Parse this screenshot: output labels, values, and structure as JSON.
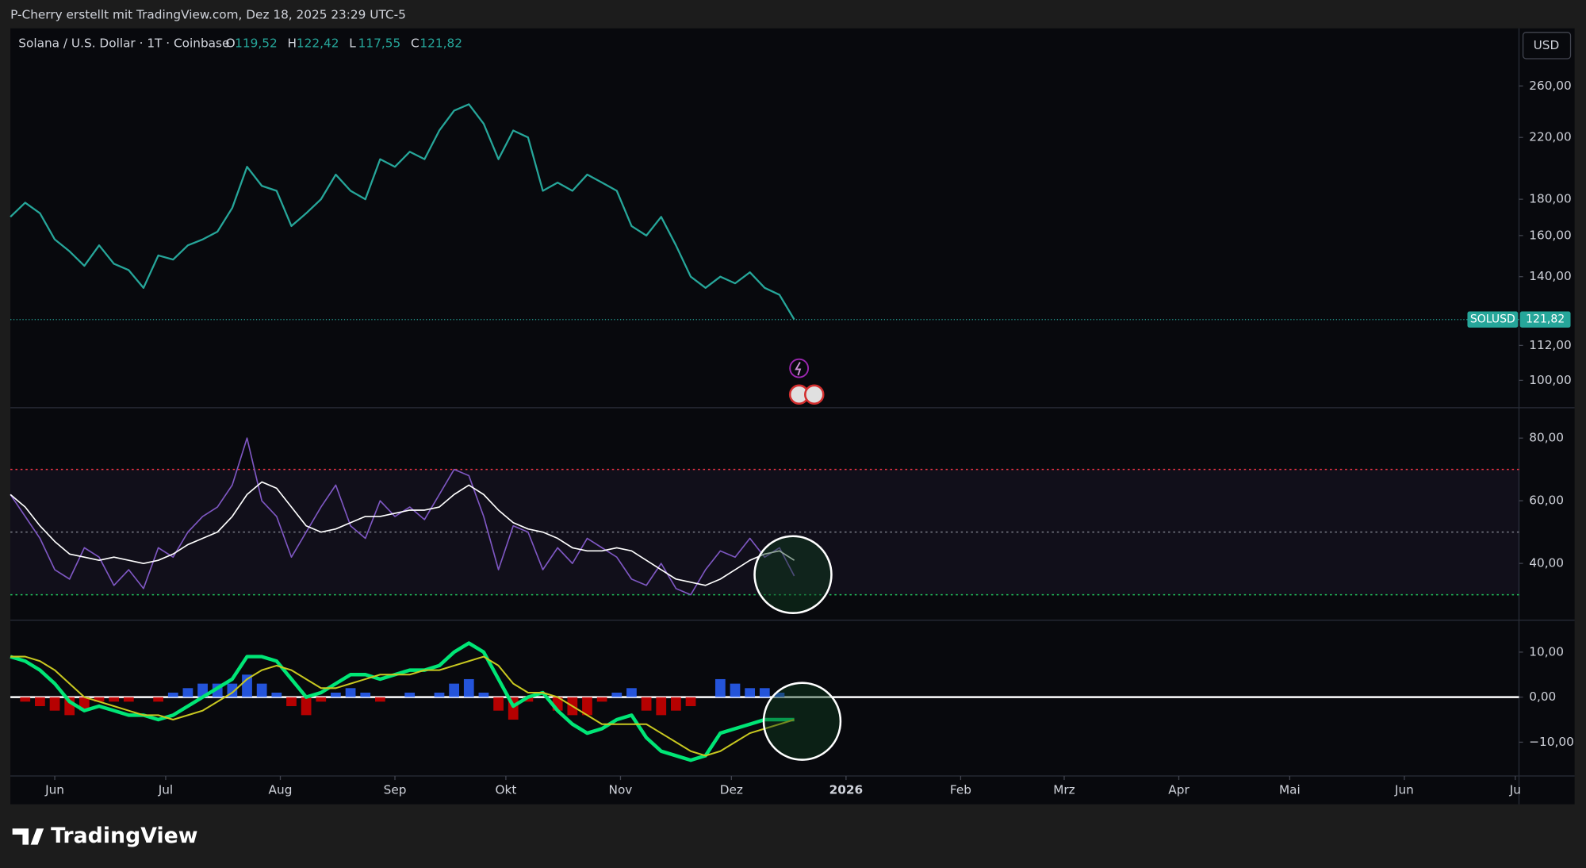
{
  "header": "P-Cherry erstellt mit TradingView.com, Dez 18, 2025 23:29 UTC-5",
  "brand": "TradingView",
  "chart_data": [
    {
      "type": "line",
      "title": "Solana / U.S. Dollar · 1T · Coinbase",
      "legend": [
        {
          "name": "O",
          "label": "119,52"
        },
        {
          "name": "H",
          "label": "122,42"
        },
        {
          "name": "L",
          "label": "117,55"
        },
        {
          "name": "C",
          "label": "121,82"
        }
      ],
      "currency": "USD",
      "symbol": "SOLUSD",
      "last_price": {
        "value": 121.82,
        "label": "121,82"
      },
      "log_scale": true,
      "xlim": [
        0,
        408
      ],
      "x": [
        0,
        4,
        8,
        12,
        16,
        20,
        24,
        28,
        32,
        36,
        40,
        44,
        48,
        52,
        56,
        60,
        64,
        68,
        72,
        76,
        80,
        84,
        88,
        92,
        96,
        100,
        104,
        108,
        112,
        116,
        120,
        124,
        128,
        132,
        136,
        140,
        144,
        148,
        152,
        156,
        160,
        164,
        168,
        172,
        176,
        180,
        184,
        188,
        192,
        196,
        200,
        204,
        208,
        212
      ],
      "series": [
        {
          "color": "#26a69a",
          "values": [
            170,
            178,
            172,
            158,
            152,
            145,
            155,
            146,
            143,
            135,
            150,
            148,
            155,
            158,
            162,
            175,
            200,
            188,
            185,
            165,
            172,
            180,
            195,
            185,
            180,
            205,
            200,
            210,
            205,
            225,
            240,
            245,
            230,
            205,
            225,
            220,
            185,
            190,
            185,
            195,
            190,
            185,
            165,
            160,
            170,
            155,
            140,
            135,
            140,
            137,
            142,
            135,
            132,
            121.82
          ]
        }
      ],
      "ylim": [
        91.5,
        313.5
      ],
      "yticks": [
        {
          "value": 260,
          "label": "260,00"
        },
        {
          "value": 220,
          "label": "220,00"
        },
        {
          "value": 180,
          "label": "180,00"
        },
        {
          "value": 160,
          "label": "160,00"
        },
        {
          "value": 140,
          "label": "140,00"
        },
        {
          "value": 112,
          "label": "112,00"
        },
        {
          "value": 100,
          "label": "100,00"
        }
      ]
    },
    {
      "type": "line",
      "xlim": [
        0,
        408
      ],
      "x": [
        0,
        4,
        8,
        12,
        16,
        20,
        24,
        28,
        32,
        36,
        40,
        44,
        48,
        52,
        56,
        60,
        64,
        68,
        72,
        76,
        80,
        84,
        88,
        92,
        96,
        100,
        104,
        108,
        112,
        116,
        120,
        124,
        128,
        132,
        136,
        140,
        144,
        148,
        152,
        156,
        160,
        164,
        168,
        172,
        176,
        180,
        184,
        188,
        192,
        196,
        200,
        204,
        208,
        212
      ],
      "series": [
        {
          "color": "#7e57c2",
          "values": [
            62,
            55,
            48,
            38,
            35,
            45,
            42,
            33,
            38,
            32,
            45,
            42,
            50,
            55,
            58,
            65,
            80,
            60,
            55,
            42,
            50,
            58,
            65,
            52,
            48,
            60,
            55,
            58,
            54,
            62,
            70,
            68,
            55,
            38,
            52,
            50,
            38,
            45,
            40,
            48,
            45,
            42,
            35,
            33,
            40,
            32,
            30,
            38,
            44,
            42,
            48,
            42,
            45,
            36
          ]
        },
        {
          "color": "#ffffff",
          "values": [
            62,
            58,
            52,
            47,
            43,
            42,
            41,
            42,
            41,
            40,
            41,
            43,
            46,
            48,
            50,
            55,
            62,
            66,
            64,
            58,
            52,
            50,
            51,
            53,
            55,
            55,
            56,
            57,
            57,
            58,
            62,
            65,
            62,
            57,
            53,
            51,
            50,
            48,
            45,
            44,
            44,
            45,
            44,
            41,
            38,
            35,
            34,
            33,
            35,
            38,
            41,
            43,
            44,
            41
          ]
        }
      ],
      "levels": [
        {
          "value": 70,
          "color": "#f23645"
        },
        {
          "value": 50,
          "color": "#787b86"
        },
        {
          "value": 30,
          "color": "#22c55e"
        }
      ],
      "band_color": "#7e57c2",
      "ylim": [
        21.9,
        89.7
      ],
      "yticks": [
        {
          "value": 80,
          "label": "80,00"
        },
        {
          "value": 60,
          "label": "60,00"
        },
        {
          "value": 40,
          "label": "40,00"
        }
      ]
    },
    {
      "type": "macd",
      "xlim": [
        0,
        408
      ],
      "x": [
        0,
        4,
        8,
        12,
        16,
        20,
        24,
        28,
        32,
        36,
        40,
        44,
        48,
        52,
        56,
        60,
        64,
        68,
        72,
        76,
        80,
        84,
        88,
        92,
        96,
        100,
        104,
        108,
        112,
        116,
        120,
        124,
        128,
        132,
        136,
        140,
        144,
        148,
        152,
        156,
        160,
        164,
        168,
        172,
        176,
        180,
        184,
        188,
        192,
        196,
        200,
        204,
        208,
        212
      ],
      "histogram": {
        "colors": [
          "#2962ff",
          "#d50000"
        ],
        "values": [
          0,
          -1,
          -2,
          -3,
          -4,
          -3,
          -1,
          -1,
          -1,
          0,
          -1,
          1,
          2,
          3,
          3,
          3,
          5,
          3,
          1,
          -2,
          -4,
          -1,
          1,
          2,
          1,
          -1,
          0,
          1,
          0,
          1,
          3,
          4,
          1,
          -3,
          -5,
          -1,
          0,
          -3,
          -4,
          -4,
          -1,
          1,
          2,
          -3,
          -4,
          -3,
          -2,
          0,
          4,
          3,
          2,
          2,
          1,
          0
        ]
      },
      "series": [
        {
          "color": "#00e676",
          "values": [
            9,
            8,
            6,
            3,
            -1,
            -3,
            -2,
            -3,
            -4,
            -4,
            -5,
            -4,
            -2,
            0,
            2,
            4,
            9,
            9,
            8,
            4,
            0,
            1,
            3,
            5,
            5,
            4,
            5,
            6,
            6,
            7,
            10,
            12,
            10,
            4,
            -2,
            0,
            1,
            -3,
            -6,
            -8,
            -7,
            -5,
            -4,
            -9,
            -12,
            -13,
            -14,
            -13,
            -8,
            -7,
            -6,
            -5,
            -5,
            -5
          ]
        },
        {
          "color": "#c8c820",
          "values": [
            9,
            9,
            8,
            6,
            3,
            0,
            -1,
            -2,
            -3,
            -4,
            -4,
            -5,
            -4,
            -3,
            -1,
            1,
            4,
            6,
            7,
            6,
            4,
            2,
            2,
            3,
            4,
            5,
            5,
            5,
            6,
            6,
            7,
            8,
            9,
            7,
            3,
            1,
            1,
            0,
            -2,
            -4,
            -6,
            -6,
            -6,
            -6,
            -8,
            -10,
            -12,
            -13,
            -12,
            -10,
            -8,
            -7,
            -6,
            -5
          ]
        }
      ],
      "levels": [
        {
          "value": 0,
          "color": "#ffffff"
        }
      ],
      "ylim": [
        -17.5,
        17.1
      ],
      "yticks": [
        {
          "value": 10,
          "label": "10,00"
        },
        {
          "value": 0,
          "label": "0,00"
        },
        {
          "value": -10,
          "label": "−10,00"
        }
      ],
      "xticks": [
        {
          "value": 12,
          "label": "Jun"
        },
        {
          "value": 42,
          "label": "Jul"
        },
        {
          "value": 73,
          "label": "Aug"
        },
        {
          "value": 104,
          "label": "Sep"
        },
        {
          "value": 134,
          "label": "Okt"
        },
        {
          "value": 165,
          "label": "Nov"
        },
        {
          "value": 195,
          "label": "Dez"
        },
        {
          "value": 226,
          "label": "2026"
        },
        {
          "value": 257,
          "label": "Feb"
        },
        {
          "value": 285,
          "label": "Mrz"
        },
        {
          "value": 316,
          "label": "Apr"
        },
        {
          "value": 346,
          "label": "Mai"
        },
        {
          "value": 377,
          "label": "Jun"
        },
        {
          "value": 407,
          "label": "Ju"
        }
      ]
    }
  ]
}
